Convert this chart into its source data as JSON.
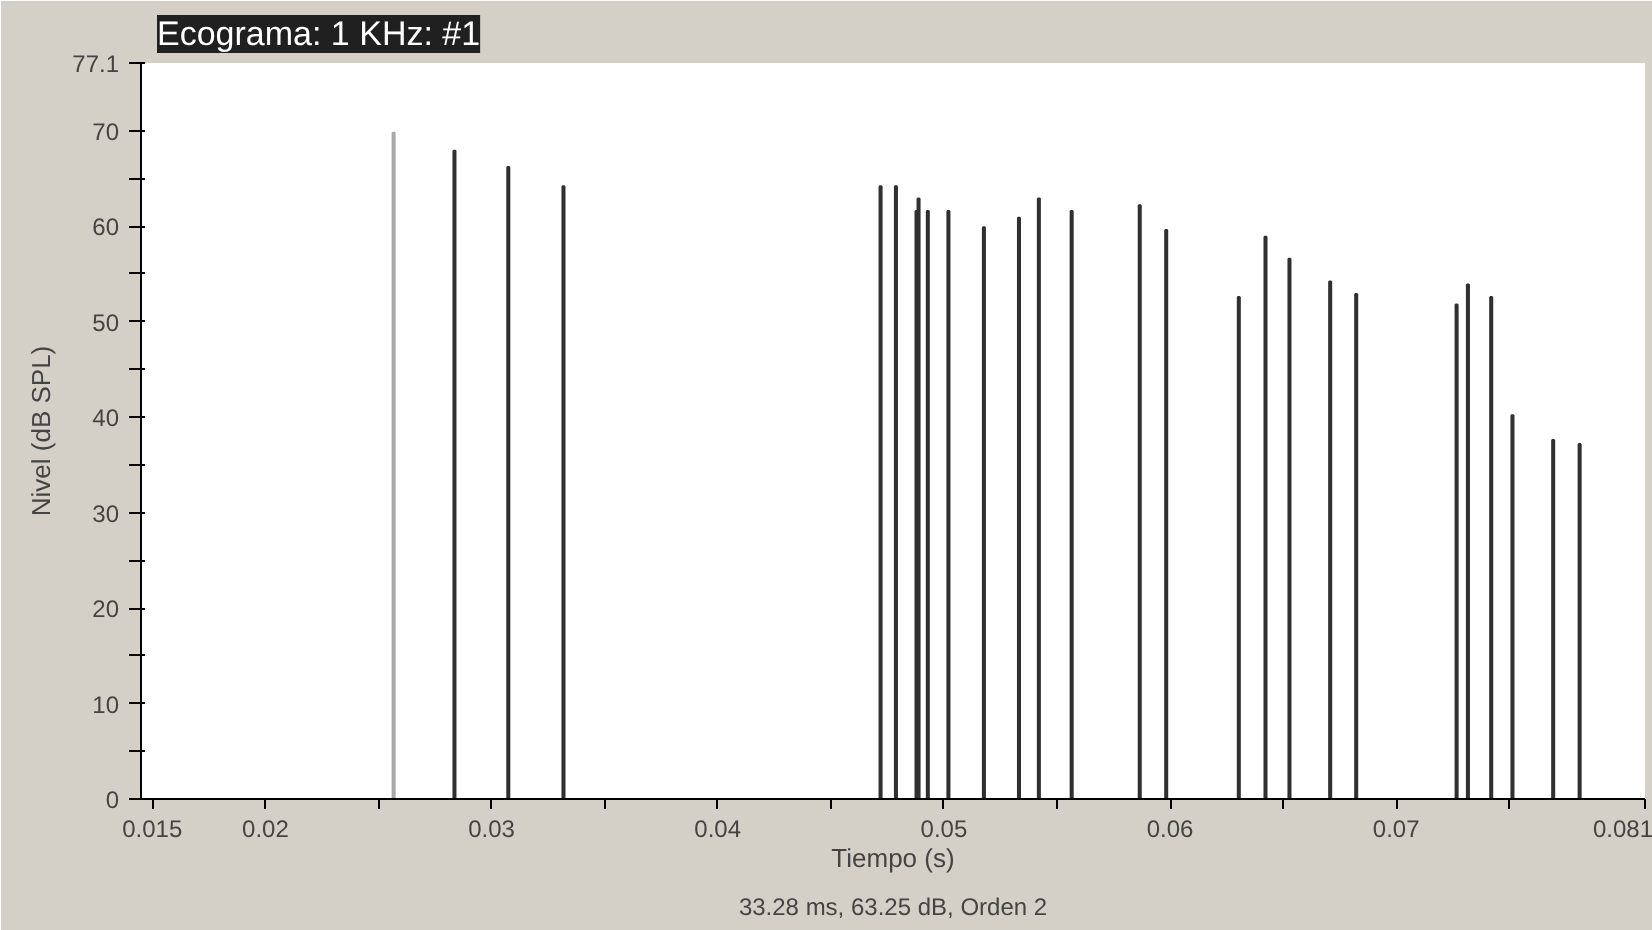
{
  "chart_data": {
    "type": "bar",
    "title": "Ecograma: 1 KHz: #1",
    "xlabel": "Tiempo (s)",
    "ylabel": "Nivel (dB SPL)",
    "annotations": [
      "33.28 ms, 63.25 dB, Orden 2"
    ],
    "x": [
      0.02567,
      0.02836,
      0.03074,
      0.03318,
      0.0472,
      0.04788,
      0.04879,
      0.04888,
      0.04929,
      0.0502,
      0.05177,
      0.05332,
      0.0542,
      0.05565,
      0.05866,
      0.05983,
      0.06304,
      0.06422,
      0.06528,
      0.06708,
      0.06823,
      0.07267,
      0.07317,
      0.0742,
      0.07514,
      0.07694,
      0.07811
    ],
    "values": [
      69.8,
      67.9,
      66.2,
      64.2,
      64.2,
      64.2,
      61.6,
      62.9,
      61.6,
      61.6,
      59.9,
      60.9,
      62.9,
      61.6,
      62.2,
      59.6,
      52.6,
      58.9,
      56.6,
      54.2,
      52.9,
      51.8,
      53.9,
      52.6,
      40.2,
      37.6,
      37.2
    ],
    "colors": [
      "#a8a8a8",
      "#303030",
      "#303030",
      "#303030",
      "#303030",
      "#303030",
      "#303030",
      "#303030",
      "#303030",
      "#303030",
      "#303030",
      "#303030",
      "#303030",
      "#303030",
      "#303030",
      "#303030",
      "#303030",
      "#303030",
      "#303030",
      "#303030",
      "#303030",
      "#303030",
      "#303030",
      "#303030",
      "#303030",
      "#303030",
      "#303030"
    ],
    "grid": false,
    "xlim": [
      0.0145,
      0.081
    ],
    "xticks": [
      0.015,
      0.02,
      {
        "value": 0.025,
        "label": null
      },
      0.03,
      {
        "value": 0.035,
        "label": null
      },
      0.04,
      {
        "value": 0.045,
        "label": null
      },
      0.05,
      {
        "value": 0.055,
        "label": null
      },
      0.06,
      {
        "value": 0.065,
        "label": null
      },
      0.07,
      {
        "value": 0.075,
        "label": null
      },
      0.081
    ],
    "ylim": [
      0,
      77.1
    ],
    "yticks": [
      0,
      {
        "value": 5,
        "label": null
      },
      10,
      {
        "value": 15,
        "label": null
      },
      20,
      {
        "value": 25,
        "label": null
      },
      30,
      {
        "value": 35,
        "label": null
      },
      40,
      {
        "value": 45,
        "label": null
      },
      50,
      {
        "value": 55,
        "label": null
      },
      60,
      {
        "value": 65,
        "label": null
      },
      70,
      77.1
    ]
  }
}
